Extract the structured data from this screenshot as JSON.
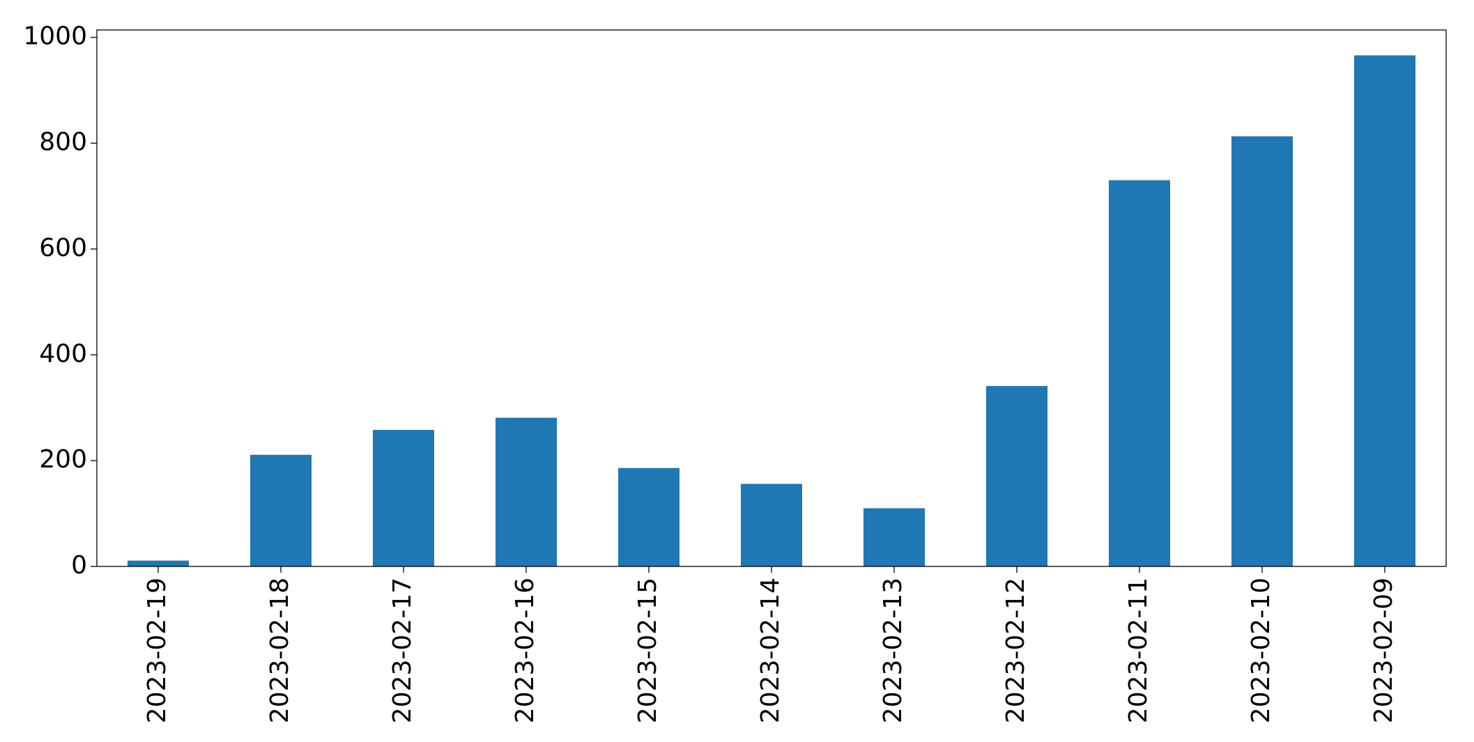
{
  "chart_data": {
    "type": "bar",
    "categories": [
      "2023-02-19",
      "2023-02-18",
      "2023-02-17",
      "2023-02-16",
      "2023-02-15",
      "2023-02-14",
      "2023-02-13",
      "2023-02-12",
      "2023-02-11",
      "2023-02-10",
      "2023-02-09"
    ],
    "values": [
      11,
      211,
      258,
      281,
      186,
      156,
      110,
      341,
      730,
      813,
      966
    ],
    "color": "#1f77b4",
    "ylim": [
      0,
      1014
    ],
    "yticks": [
      0,
      200,
      400,
      600,
      800,
      1000
    ],
    "grid": false
  }
}
